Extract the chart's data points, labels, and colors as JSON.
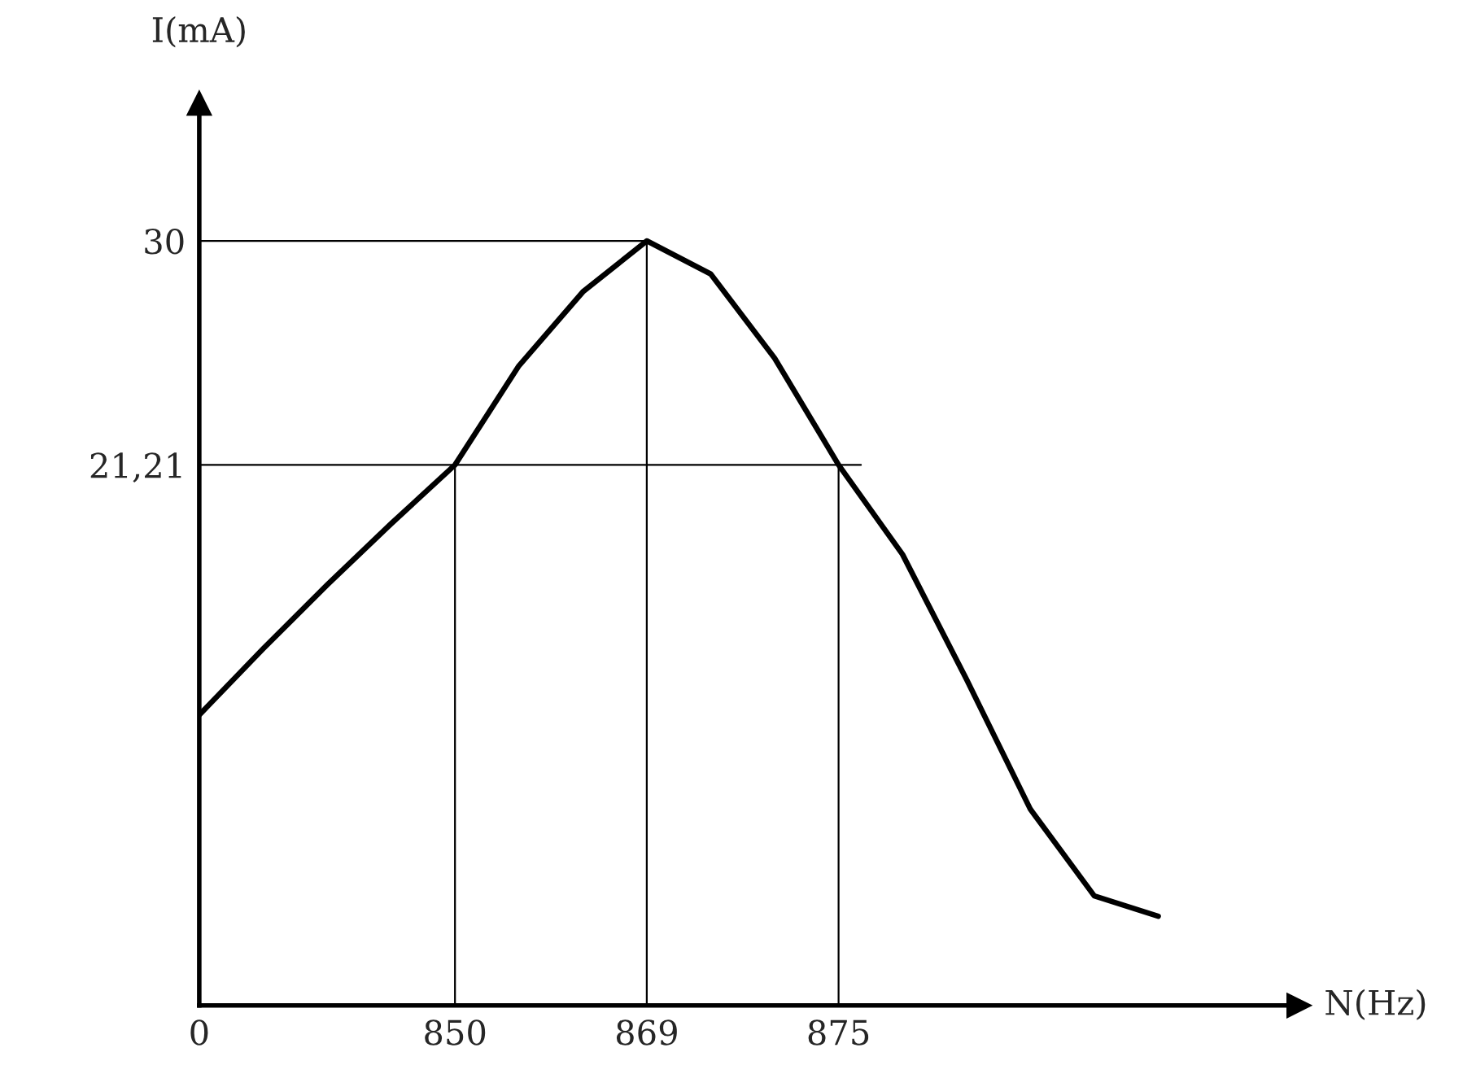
{
  "chart_data": {
    "type": "line",
    "xlabel": "N(Hz)",
    "ylabel": "I(mA)",
    "categories": [
      "0",
      null,
      null,
      null,
      "850",
      null,
      null,
      "869",
      null,
      null,
      "875",
      null,
      null,
      null,
      null,
      null,
      null,
      null
    ],
    "series": [
      {
        "color": "#000000",
        "values": [
          11.4,
          14.0,
          16.5,
          18.9,
          21.21,
          25.1,
          28.0,
          30,
          28.7,
          25.4,
          21.21,
          17.7,
          12.8,
          7.7,
          4.3,
          3.5,
          null,
          null
        ]
      }
    ],
    "ylim": [
      0,
      35.4
    ],
    "yticks": [
      {
        "value": 21.21,
        "label": "21,21"
      },
      30
    ],
    "ref_lines": [
      {
        "axis": "y",
        "value": 30,
        "label": null
      },
      {
        "axis": "y",
        "value": 21.21,
        "label": null
      },
      {
        "axis": "x",
        "value": "850",
        "label": null
      },
      {
        "axis": "x",
        "value": "869",
        "label": null
      },
      {
        "axis": "x",
        "value": "875",
        "label": null
      }
    ],
    "grid": false,
    "marker": "none",
    "line_style": "solid"
  }
}
